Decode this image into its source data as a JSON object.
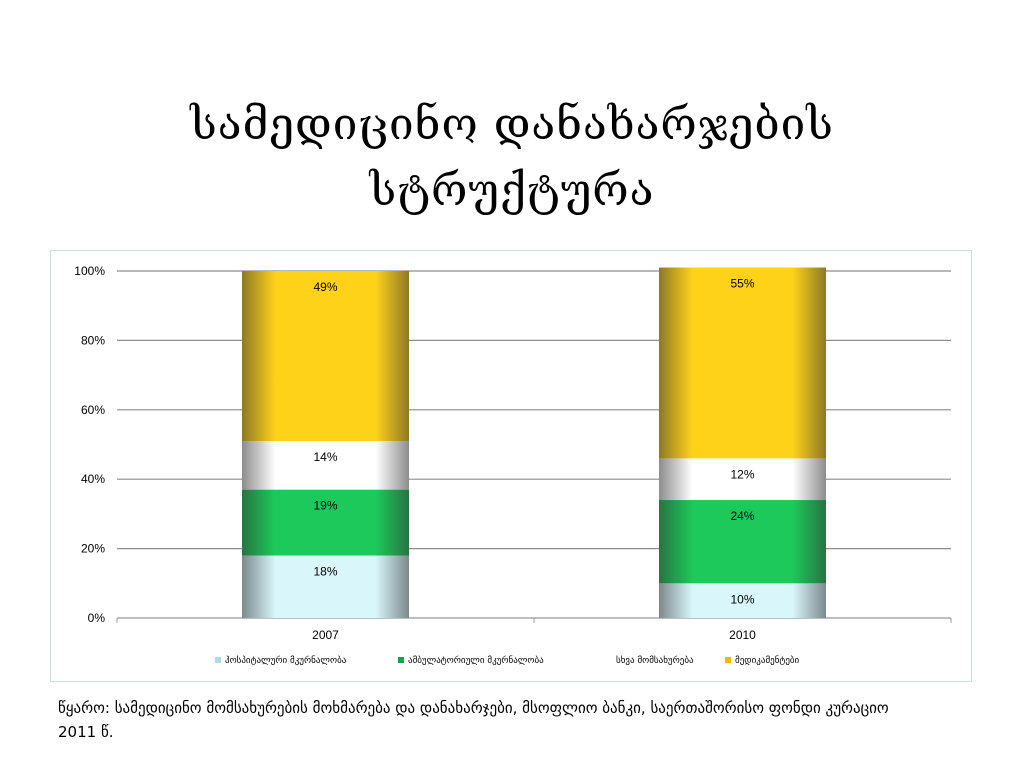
{
  "slide": {
    "title_line1": "სამედიცინო დანახარჯების",
    "title_line2": "სტრუქტურა",
    "source_line1": "წყარო: სამედიცინო მომსახურების მოხმარება  და დანახარჯები, მსოფლიო ბანკი,  საერთაშორისო ფონდი კურაციო",
    "source_line2": "2011 წ."
  },
  "chart_data": {
    "type": "bar",
    "stacked": true,
    "categories": [
      "2007",
      "2010"
    ],
    "series": [
      {
        "name": "ჰოსპიტალური მკურნალობა",
        "values": [
          18,
          10
        ],
        "labels": [
          "18%",
          "10%"
        ],
        "color": "#d9f6fb",
        "legend_color": "#a9dde6"
      },
      {
        "name": "ამბულატორიული მკურნალობა",
        "values": [
          19,
          24
        ],
        "labels": [
          "19%",
          "24%"
        ],
        "color": "#1cc95a",
        "legend_color": "#16a34a"
      },
      {
        "name": "სხვა მომსახურება",
        "values": [
          14,
          12
        ],
        "labels": [
          "14%",
          "12%"
        ],
        "color": "#ffffff",
        "legend_color": "#ffffff"
      },
      {
        "name": "მედიკამენტები",
        "values": [
          49,
          55
        ],
        "labels": [
          "49%",
          "55%"
        ],
        "color": "#ffd21a",
        "legend_color": "#f2b705"
      }
    ],
    "ylim": [
      0,
      100
    ],
    "yticks": [
      "0%",
      "20%",
      "40%",
      "60%",
      "80%",
      "100%"
    ],
    "grid": true,
    "legend_position": "bottom"
  }
}
